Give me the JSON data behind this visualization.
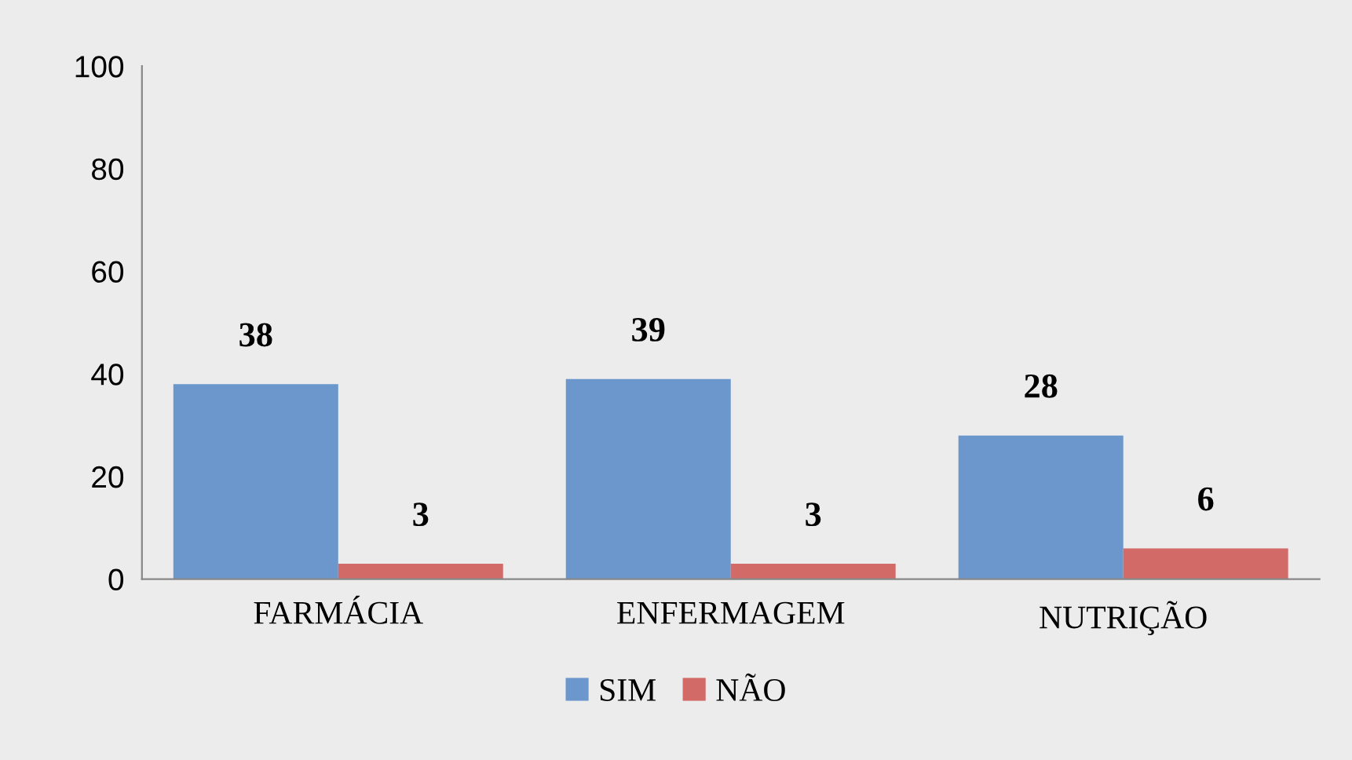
{
  "chart_data": {
    "type": "bar",
    "categories": [
      "FARMÁCIA",
      "ENFERMAGEM",
      "NUTRIÇÃO"
    ],
    "series": [
      {
        "name": "SIM",
        "color": "#6b97cd",
        "values": [
          38,
          39,
          28
        ]
      },
      {
        "name": "NÃO",
        "color": "#d26a68",
        "values": [
          3,
          3,
          6
        ]
      }
    ],
    "ylim": [
      0,
      100
    ],
    "yticks": [
      0,
      20,
      40,
      60,
      80,
      100
    ],
    "data_labels": true,
    "grid": false,
    "legend": "bottom"
  }
}
